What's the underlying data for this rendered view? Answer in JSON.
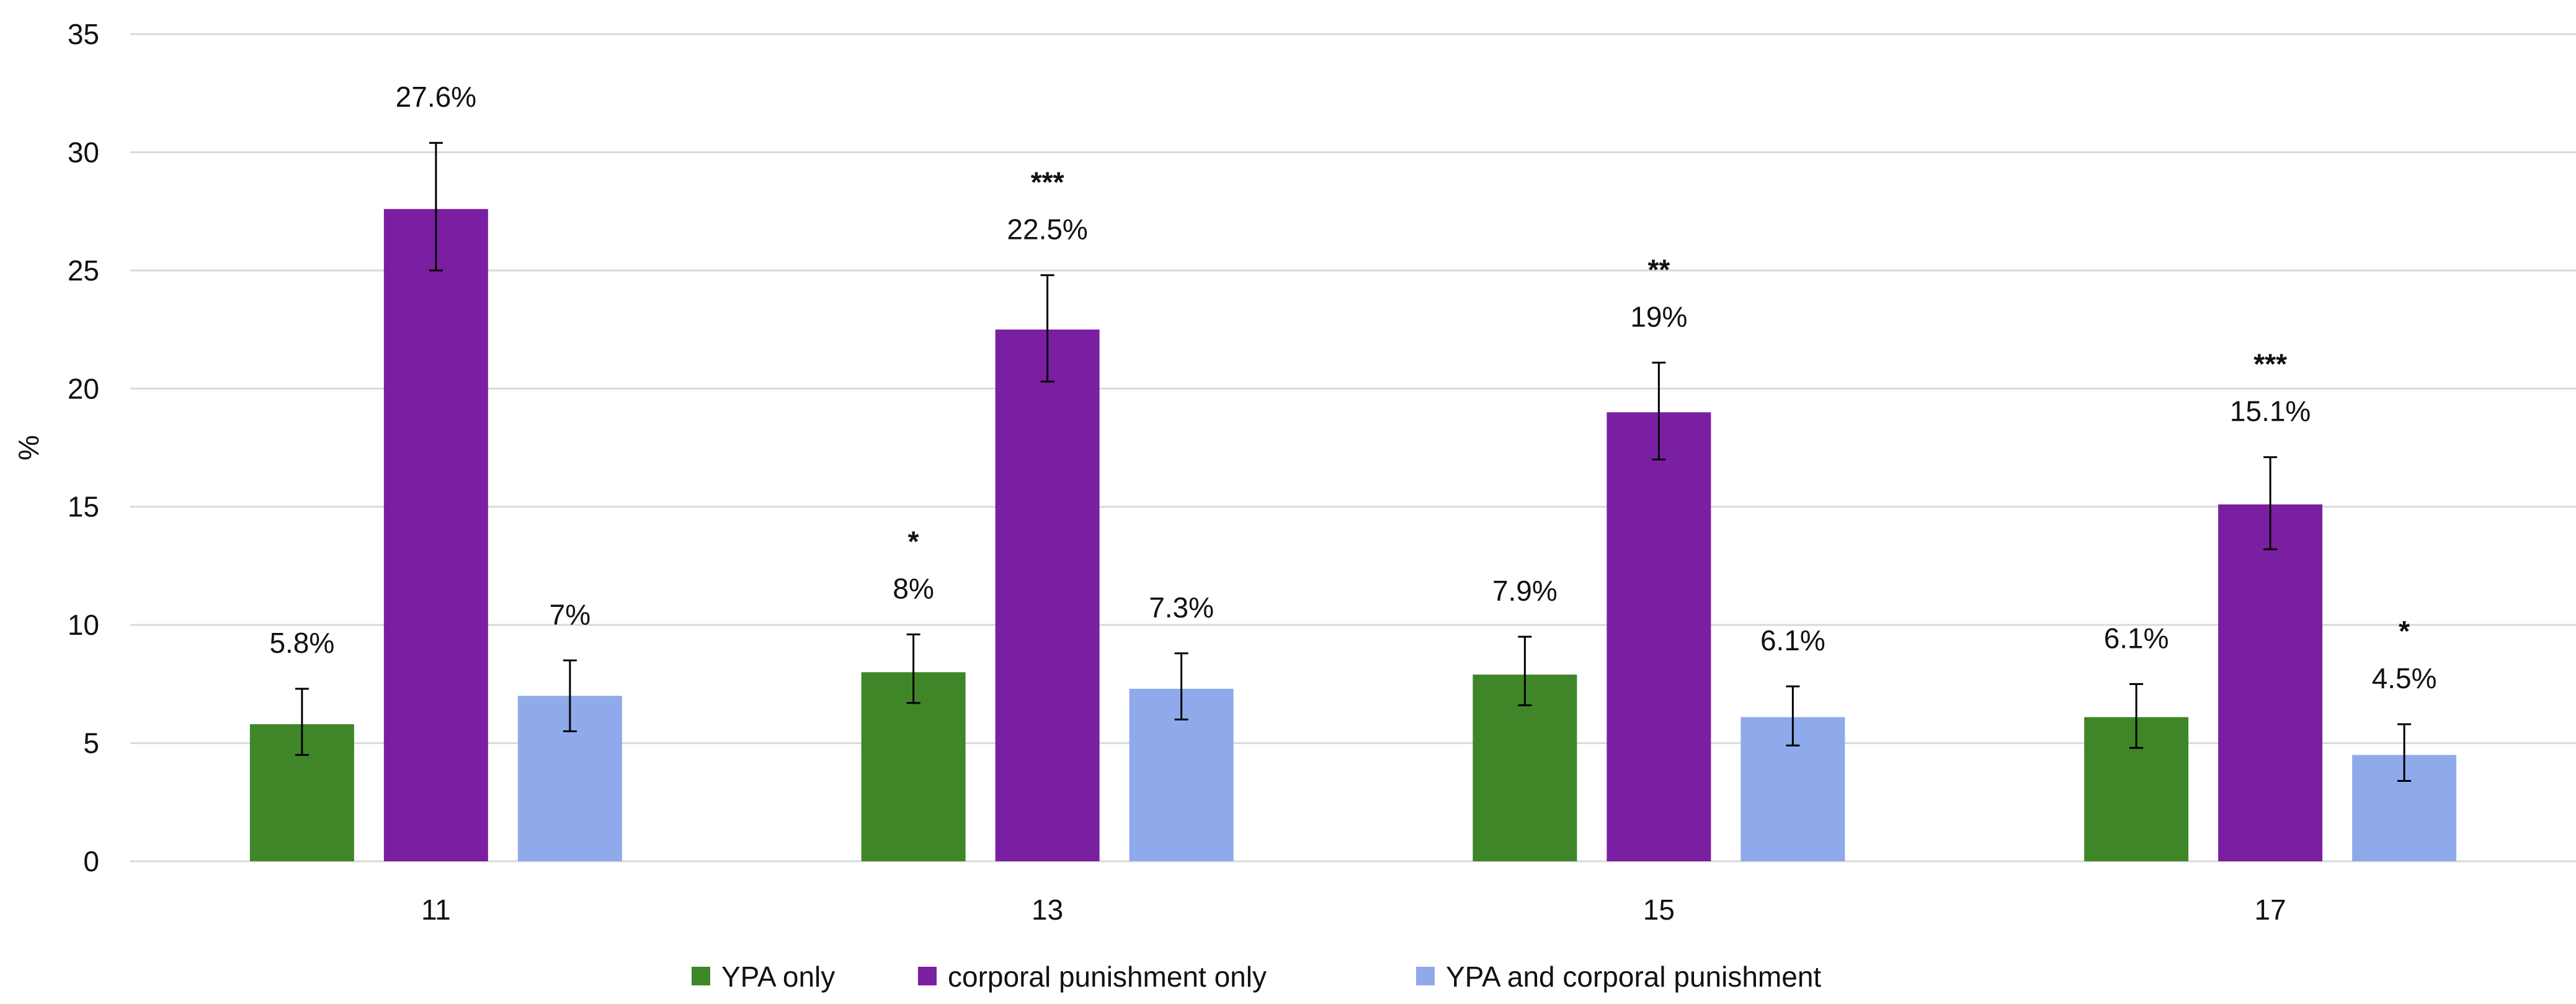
{
  "chart_data": {
    "type": "bar",
    "title": "",
    "xlabel": "",
    "ylabel": "%",
    "ylim": [
      0,
      35
    ],
    "yticks": [
      0,
      5,
      10,
      15,
      20,
      25,
      30,
      35
    ],
    "grid": true,
    "legend_position": "bottom",
    "categories": [
      "11",
      "13",
      "15",
      "17"
    ],
    "series": [
      {
        "name": "YPA only",
        "color": "#3f8629",
        "values": [
          5.8,
          8.0,
          7.9,
          6.1
        ],
        "labels": [
          "5.8%",
          "8%",
          "7.9%",
          "6.1%"
        ],
        "error_low": [
          4.5,
          6.7,
          6.6,
          4.8
        ],
        "error_high": [
          7.3,
          9.6,
          9.5,
          7.5
        ],
        "significance": [
          "",
          "*",
          "",
          ""
        ]
      },
      {
        "name": "corporal punishment only",
        "color": "#7b1fa2",
        "values": [
          27.6,
          22.5,
          19.0,
          15.1
        ],
        "labels": [
          "27.6%",
          "22.5%",
          "19%",
          "15.1%"
        ],
        "error_low": [
          25.0,
          20.3,
          17.0,
          13.2
        ],
        "error_high": [
          30.4,
          24.8,
          21.1,
          17.1
        ],
        "significance": [
          "",
          "***",
          "**",
          "***"
        ]
      },
      {
        "name": "YPA and corporal punishment",
        "color": "#8eaaea",
        "values": [
          7.0,
          7.3,
          6.1,
          4.5
        ],
        "labels": [
          "7%",
          "7.3%",
          "6.1%",
          "4.5%"
        ],
        "error_low": [
          5.5,
          6.0,
          4.9,
          3.4
        ],
        "error_high": [
          8.5,
          8.8,
          7.4,
          5.8
        ],
        "significance": [
          "",
          "",
          "",
          "*"
        ]
      }
    ]
  }
}
